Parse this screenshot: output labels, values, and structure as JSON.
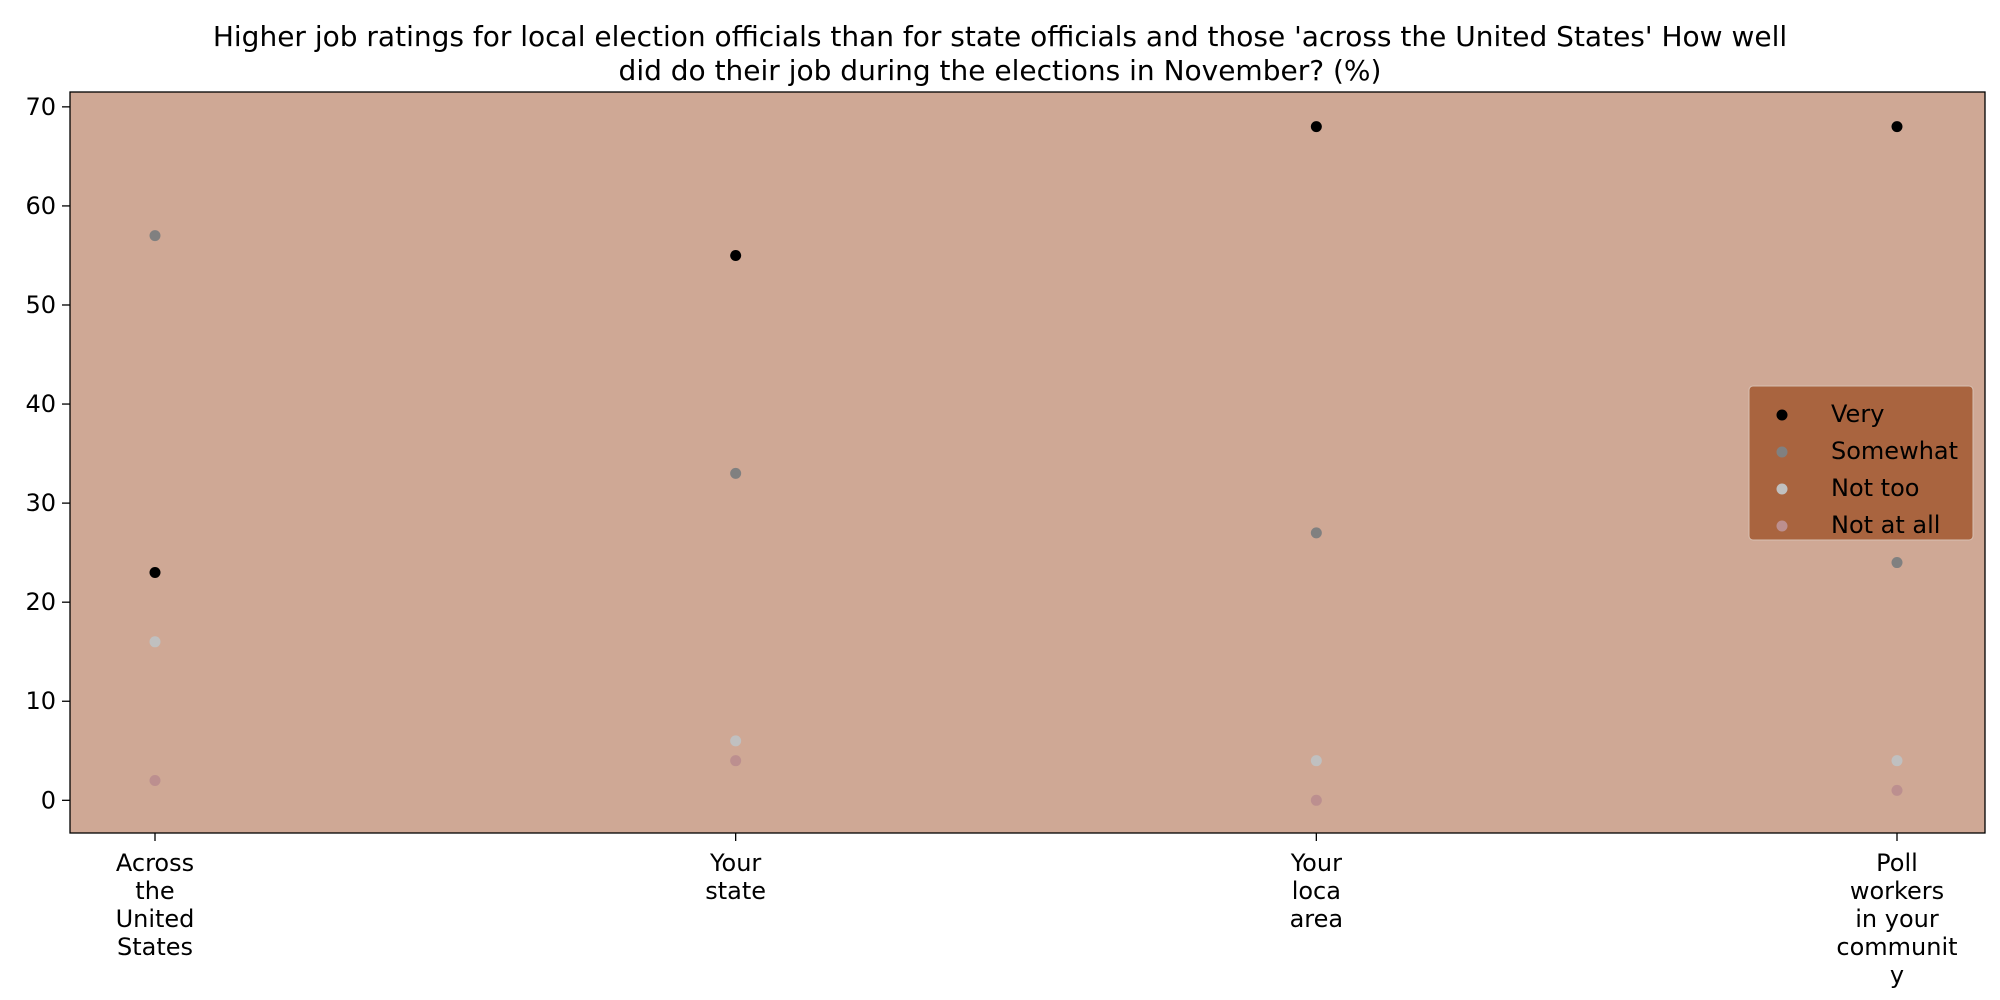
{
  "chart_data": {
    "type": "scatter",
    "title_lines": [
      "Higher job ratings for local election officials than for state officials and those 'across the United States' How well",
      "did do their job during the elections in November? (%)"
    ],
    "xlabel": "",
    "ylabel": "",
    "categories": [
      {
        "lines": [
          "Across",
          "the",
          "United",
          "States"
        ]
      },
      {
        "lines": [
          "Your",
          "state"
        ]
      },
      {
        "lines": [
          "Your",
          "loca",
          "area"
        ]
      },
      {
        "lines": [
          "Poll",
          "workers",
          "in your",
          "communit",
          "y"
        ]
      }
    ],
    "ylim": [
      -3.3,
      71.5
    ],
    "yticks": [
      0,
      10,
      20,
      30,
      40,
      50,
      60,
      70
    ],
    "grid": false,
    "legend_position": "center-right",
    "plot_background": "#cfa895",
    "legend_background": "#a9643f",
    "series": [
      {
        "name": "Very",
        "color": "#000000",
        "values": [
          23,
          55,
          68,
          68
        ]
      },
      {
        "name": "Somewhat",
        "color": "#808080",
        "values": [
          57,
          33,
          27,
          24
        ]
      },
      {
        "name": "Not too",
        "color": "#c0c0c0",
        "values": [
          16,
          6,
          4,
          4
        ]
      },
      {
        "name": "Not at all",
        "color": "#bc8f8f",
        "values": [
          2,
          4,
          0,
          1
        ]
      }
    ]
  }
}
